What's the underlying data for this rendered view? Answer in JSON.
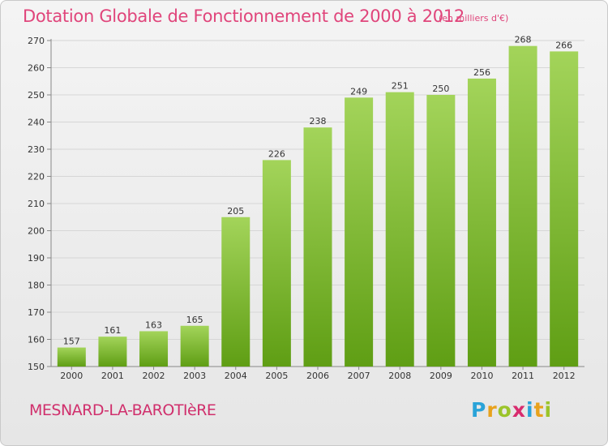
{
  "header": {
    "title": "Dotation Globale de Fonctionnement de 2000 à 2012",
    "unit": "(en milliers d'€)"
  },
  "footer": {
    "commune": "MESNARD-LA-BAROTIèRE",
    "logo_letters": [
      "P",
      "r",
      "o",
      "x",
      "i",
      "t",
      "i"
    ],
    "logo_colors": [
      "#2aa3d8",
      "#e8a21c",
      "#9bc42a",
      "#d82c6e",
      "#2aa3d8",
      "#e8a21c",
      "#9bc42a"
    ]
  },
  "colors": {
    "bar_light": "#a3d45a",
    "bar_dark": "#5f9e14",
    "title": "#e0457b"
  },
  "chart_data": {
    "type": "bar",
    "categories": [
      "2000",
      "2001",
      "2002",
      "2003",
      "2004",
      "2005",
      "2006",
      "2007",
      "2008",
      "2009",
      "2010",
      "2011",
      "2012"
    ],
    "values": [
      157,
      161,
      163,
      165,
      205,
      226,
      238,
      249,
      251,
      250,
      256,
      268,
      266
    ],
    "title": "Dotation Globale de Fonctionnement de 2000 à 2012",
    "xlabel": "",
    "ylabel": "",
    "ylim": [
      150,
      270
    ],
    "yticks": [
      150,
      160,
      170,
      180,
      190,
      200,
      210,
      220,
      230,
      240,
      250,
      260,
      270
    ],
    "grid": true
  }
}
